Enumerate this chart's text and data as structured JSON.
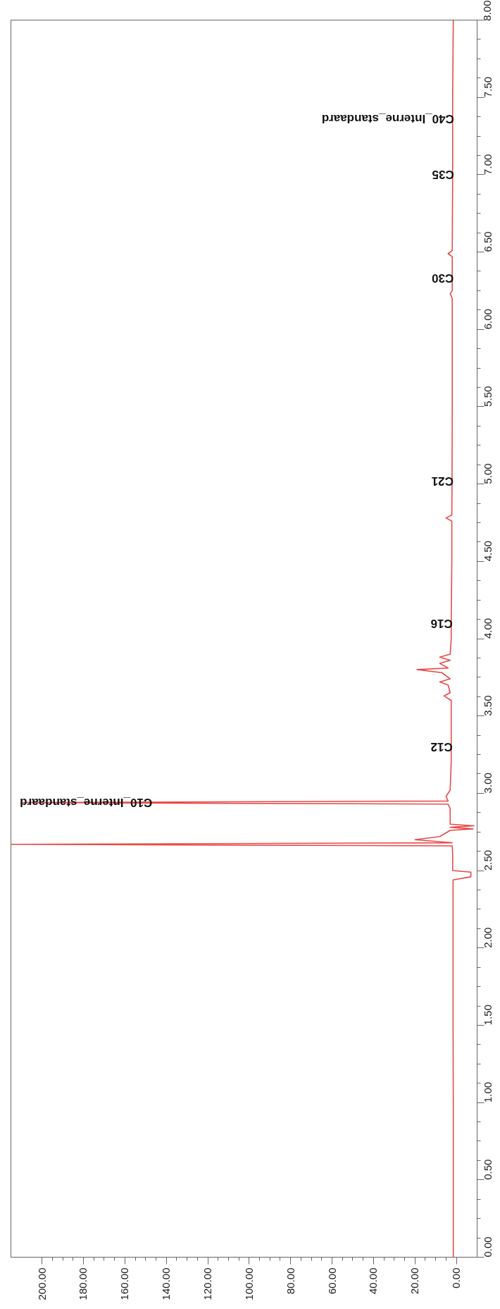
{
  "chart_data": {
    "type": "line",
    "orientation": "horizontal",
    "x": [
      0,
      0.5,
      1.0,
      1.5,
      2.0,
      2.44,
      2.46,
      2.49,
      2.5,
      2.6,
      2.66,
      2.67,
      2.68,
      2.7,
      2.72,
      2.76,
      2.77,
      2.78,
      2.79,
      2.8,
      2.85,
      2.9,
      2.93,
      2.94,
      2.95,
      2.98,
      3.02,
      3.2,
      3.3,
      3.5,
      3.6,
      3.63,
      3.65,
      3.7,
      3.72,
      3.74,
      3.78,
      3.8,
      3.81,
      3.84,
      3.86,
      3.88,
      3.9,
      4.0,
      4.1,
      4.5,
      4.76,
      4.78,
      4.8,
      5.02,
      5.5,
      6.0,
      6.2,
      6.23,
      6.25,
      6.33,
      6.47,
      6.49,
      6.51,
      7.0,
      7.36,
      7.5,
      8.0
    ],
    "series": [
      {
        "color": "#e84a4a",
        "values": [
          1.5,
          1.5,
          1.5,
          1.6,
          1.6,
          1.6,
          -7,
          -7,
          1.8,
          1.8,
          2,
          215,
          2,
          20,
          8,
          3,
          -8,
          3,
          -8.5,
          3,
          3,
          3,
          4,
          210,
          4,
          5,
          3,
          2.5,
          2.5,
          2.5,
          2.5,
          6,
          3,
          4,
          8,
          3,
          7,
          19,
          4,
          8,
          3,
          8,
          3,
          2.5,
          2.5,
          2.2,
          2.2,
          5,
          2.2,
          2.1,
          2,
          2,
          2,
          3,
          2,
          2,
          2,
          4,
          2,
          1.8,
          1.8,
          1.8,
          1.5
        ]
      }
    ],
    "xlim": [
      215,
      -10
    ],
    "xticks": [
      {
        "value": 0,
        "label": "0.00"
      },
      {
        "value": 20,
        "label": "20.00"
      },
      {
        "value": 40,
        "label": "40.00"
      },
      {
        "value": 60,
        "label": "60.00"
      },
      {
        "value": 80,
        "label": "80.00"
      },
      {
        "value": 100,
        "label": "100.00"
      },
      {
        "value": 120,
        "label": "120.00"
      },
      {
        "value": 140,
        "label": "140.00"
      },
      {
        "value": 160,
        "label": "160.00"
      },
      {
        "value": 180,
        "label": "180.00"
      },
      {
        "value": 200,
        "label": "200.00"
      }
    ],
    "ylim": [
      0,
      8
    ],
    "yticks": [
      {
        "value": 0,
        "label": "0.00"
      },
      {
        "value": 0.5,
        "label": "0.50"
      },
      {
        "value": 1,
        "label": "1.00"
      },
      {
        "value": 1.5,
        "label": "1.50"
      },
      {
        "value": 2,
        "label": "2.00"
      },
      {
        "value": 2.5,
        "label": "2.50"
      },
      {
        "value": 3,
        "label": "3.00"
      },
      {
        "value": 3.5,
        "label": "3.50"
      },
      {
        "value": 4,
        "label": "4.00"
      },
      {
        "value": 4.5,
        "label": "4.50"
      },
      {
        "value": 5,
        "label": "5.00"
      },
      {
        "value": 5.5,
        "label": "5.50"
      },
      {
        "value": 6,
        "label": "6.00"
      },
      {
        "value": 6.5,
        "label": "6.50"
      },
      {
        "value": 7,
        "label": "7.00"
      },
      {
        "value": 7.5,
        "label": "7.50"
      },
      {
        "value": 8,
        "label": "8.00"
      }
    ],
    "annotations": [
      {
        "text": "C10_Interne_standaard",
        "x": 210,
        "y": 2.94
      },
      {
        "text": "C12",
        "x": 2.5,
        "y": 3.3
      },
      {
        "text": "C16",
        "x": 2.5,
        "y": 4.1
      },
      {
        "text": "C21",
        "x": 2.1,
        "y": 5.02
      },
      {
        "text": "C30",
        "x": 2,
        "y": 6.33
      },
      {
        "text": "C35",
        "x": 1.8,
        "y": 7.0
      },
      {
        "text": "C40_Interne_standaard",
        "x": 1.8,
        "y": 7.36
      }
    ],
    "grid": false,
    "marker": "none",
    "line_style": "solid"
  }
}
